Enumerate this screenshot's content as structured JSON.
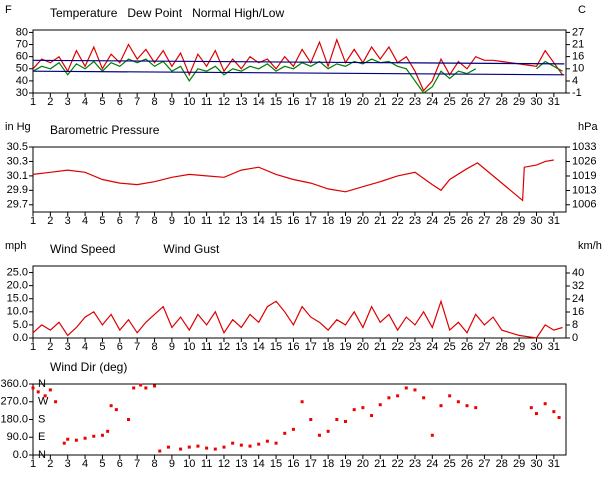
{
  "chart_data": [
    {
      "type": "line",
      "y_label": "F",
      "y2_label": "C",
      "xlim": [
        1,
        31.7
      ],
      "xticks": [
        1,
        2,
        3,
        4,
        5,
        6,
        7,
        8,
        9,
        10,
        11,
        12,
        13,
        14,
        15,
        16,
        17,
        18,
        19,
        20,
        21,
        22,
        23,
        24,
        25,
        26,
        27,
        28,
        29,
        30,
        31
      ],
      "ylim": [
        30,
        82
      ],
      "yticks": [
        80,
        70,
        60,
        50,
        40,
        30
      ],
      "y2lim": [
        -1.1,
        27.8
      ],
      "y2ticks": [
        {
          "value": 26.7,
          "label": "27"
        },
        {
          "value": 21.1,
          "label": "21"
        },
        {
          "value": 15.6,
          "label": "16"
        },
        10,
        {
          "value": 4.4,
          "label": "4"
        },
        {
          "value": -1.1,
          "label": "-1"
        }
      ],
      "x": [
        1,
        1.5,
        2,
        2.5,
        3,
        3.5,
        4,
        4.5,
        5,
        5.5,
        6,
        6.5,
        7,
        7.5,
        8,
        8.5,
        9,
        9.5,
        10,
        10.5,
        11,
        11.5,
        12,
        12.5,
        13,
        13.5,
        14,
        14.5,
        15,
        15.5,
        16,
        16.5,
        17,
        17.5,
        18,
        18.5,
        19,
        19.5,
        20,
        20.5,
        21,
        21.5,
        22,
        22.5,
        23,
        23.5,
        24,
        24.5,
        25,
        25.5,
        26,
        26.5,
        27,
        27.5,
        28,
        28.5,
        29,
        29.5,
        30,
        30.5,
        31,
        31.5
      ],
      "series": [
        {
          "name": "Temperature",
          "color": "#dd0000",
          "values": [
            50,
            58,
            55,
            60,
            48,
            65,
            52,
            68,
            50,
            62,
            55,
            70,
            58,
            66,
            55,
            65,
            52,
            63,
            45,
            62,
            52,
            65,
            48,
            58,
            50,
            60,
            55,
            58,
            50,
            60,
            52,
            66,
            55,
            72,
            52,
            74,
            55,
            66,
            55,
            68,
            58,
            68,
            55,
            60,
            48,
            32,
            40,
            58,
            45,
            56,
            50,
            60,
            57,
            57,
            56,
            55,
            54,
            53,
            52,
            65,
            55,
            45
          ]
        },
        {
          "name": "Dew Point",
          "color": "#008000",
          "values": [
            48,
            52,
            50,
            55,
            45,
            54,
            50,
            56,
            48,
            55,
            52,
            58,
            55,
            58,
            52,
            56,
            48,
            52,
            40,
            50,
            48,
            52,
            45,
            50,
            48,
            52,
            50,
            54,
            48,
            52,
            50,
            55,
            52,
            56,
            50,
            54,
            52,
            56,
            54,
            58,
            55,
            56,
            52,
            50,
            40,
            30,
            35,
            48,
            42,
            48,
            46,
            50,
            null,
            null,
            null,
            null,
            null,
            null,
            50,
            56,
            52,
            48
          ]
        },
        {
          "name": "Normal High/Low",
          "color": "#000080",
          "x": [
            1,
            31.6
          ],
          "values": [
            57,
            54
          ]
        },
        {
          "color": "#000080",
          "x": [
            1,
            31.6
          ],
          "values": [
            48,
            45
          ]
        }
      ]
    },
    {
      "type": "line",
      "y_label": "in Hg",
      "y2_label": "hPa",
      "xlim": [
        1,
        31.7
      ],
      "xticks": [
        1,
        2,
        3,
        4,
        5,
        6,
        7,
        8,
        9,
        10,
        11,
        12,
        13,
        14,
        15,
        16,
        17,
        18,
        19,
        20,
        21,
        22,
        23,
        24,
        25,
        26,
        27,
        28,
        29,
        30,
        31
      ],
      "ylim": [
        29.6,
        30.5
      ],
      "yticks": [
        30.5,
        30.3,
        30.1,
        29.9,
        29.7
      ],
      "y2lim": [
        1002.4,
        1032.9
      ],
      "y2ticks": [
        {
          "value": 1032.9,
          "label": "1033"
        },
        {
          "value": 1026.1,
          "label": "1026"
        },
        {
          "value": 1019.3,
          "label": "1019"
        },
        {
          "value": 1012.5,
          "label": "1013"
        },
        {
          "value": 1005.8,
          "label": "1006"
        }
      ],
      "x": [
        1,
        2,
        3,
        4,
        5,
        6,
        7,
        8,
        9,
        10,
        11,
        12,
        13,
        14,
        15,
        16,
        17,
        18,
        19,
        20,
        21,
        22,
        23,
        24,
        24.5,
        25,
        26,
        26.6,
        29.2,
        29.3,
        30,
        30.5,
        31
      ],
      "series": [
        {
          "name": "Barometric Pressure",
          "color": "#dd0000",
          "values": [
            30.12,
            30.15,
            30.18,
            30.15,
            30.05,
            30.0,
            29.98,
            30.02,
            30.08,
            30.12,
            30.1,
            30.08,
            30.18,
            30.22,
            30.12,
            30.05,
            30.0,
            29.92,
            29.88,
            29.95,
            30.02,
            30.1,
            30.15,
            29.98,
            29.9,
            30.05,
            30.2,
            30.28,
            29.76,
            30.22,
            30.25,
            30.3,
            30.32
          ]
        }
      ]
    },
    {
      "type": "line",
      "y_label": "mph",
      "y2_label": "km/h",
      "xlim": [
        1,
        31.7
      ],
      "xticks": [
        1,
        2,
        3,
        4,
        5,
        6,
        7,
        8,
        9,
        10,
        11,
        12,
        13,
        14,
        15,
        16,
        17,
        18,
        19,
        20,
        21,
        22,
        23,
        24,
        25,
        26,
        27,
        28,
        29,
        30,
        31
      ],
      "ylim": [
        0,
        27.5
      ],
      "yticks": [
        {
          "value": 25,
          "label": "25.0"
        },
        {
          "value": 20,
          "label": "20.0"
        },
        {
          "value": 15,
          "label": "15.0"
        },
        {
          "value": 10,
          "label": "10.0"
        },
        {
          "value": 5,
          "label": "5.0"
        },
        {
          "value": 0,
          "label": "0.0"
        }
      ],
      "y2lim": [
        0,
        44.3
      ],
      "y2ticks": [
        40,
        32,
        24,
        16,
        8,
        0
      ],
      "x": [
        1,
        1.5,
        2,
        2.5,
        3,
        3.5,
        4,
        4.5,
        5,
        5.5,
        6,
        6.5,
        7,
        7.5,
        8,
        8.5,
        9,
        9.5,
        10,
        10.5,
        11,
        11.5,
        12,
        12.5,
        13,
        13.5,
        14,
        14.5,
        15,
        15.5,
        16,
        16.5,
        17,
        17.5,
        18,
        18.5,
        19,
        19.5,
        20,
        20.5,
        21,
        21.5,
        22,
        22.5,
        23,
        23.5,
        24,
        24.5,
        25,
        25.5,
        26,
        26.5,
        27,
        27.5,
        28,
        28.5,
        29,
        29.5,
        30,
        30.5,
        31,
        31.5
      ],
      "series": [
        {
          "name": "Wind Speed",
          "color": "#dd0000",
          "values": [
            2,
            5,
            3,
            6,
            1,
            4,
            8,
            10,
            5,
            9,
            3,
            7,
            2,
            6,
            9,
            12,
            4,
            8,
            3,
            9,
            5,
            10,
            2,
            7,
            4,
            9,
            6,
            12,
            14,
            10,
            5,
            12,
            8,
            6,
            3,
            7,
            5,
            10,
            4,
            12,
            6,
            9,
            3,
            8,
            5,
            10,
            4,
            14,
            3,
            6,
            2,
            9,
            5,
            8,
            3,
            2,
            1,
            0.5,
            0,
            5,
            3,
            4
          ]
        },
        {
          "name": "Wind Gust",
          "color": "#000080",
          "x": [],
          "values": []
        }
      ]
    },
    {
      "type": "scatter",
      "xlim": [
        1,
        31.7
      ],
      "xticks": [
        1,
        2,
        3,
        4,
        5,
        6,
        7,
        8,
        9,
        10,
        11,
        12,
        13,
        14,
        15,
        16,
        17,
        18,
        19,
        20,
        21,
        22,
        23,
        24,
        25,
        26,
        27,
        28,
        29,
        30,
        31
      ],
      "ylim": [
        0,
        360
      ],
      "yticks": [
        {
          "value": 360,
          "label": "360.0"
        },
        {
          "value": 270,
          "label": "270.0"
        },
        {
          "value": 180,
          "label": "180.0"
        },
        {
          "value": 90,
          "label": "90.0"
        },
        {
          "value": 0,
          "label": "0.0"
        }
      ],
      "compass": [
        {
          "value": 360,
          "label": "N"
        },
        {
          "value": 270,
          "label": "W"
        },
        {
          "value": 180,
          "label": "S"
        },
        {
          "value": 90,
          "label": "E"
        },
        {
          "value": 0,
          "label": "N"
        }
      ],
      "x": [
        1,
        1.3,
        1.7,
        2,
        2.3,
        2.8,
        3,
        3.5,
        4,
        4.5,
        5,
        5.3,
        5.5,
        5.8,
        6.5,
        6.8,
        7.2,
        7.5,
        8,
        8.3,
        8.8,
        9.5,
        10,
        10.5,
        11,
        11.5,
        12,
        12.5,
        13,
        13.5,
        14,
        14.5,
        15,
        15.5,
        16,
        16.5,
        17,
        17.5,
        18,
        18.5,
        19,
        19.5,
        20,
        20.5,
        21,
        21.5,
        22,
        22.5,
        23,
        23.5,
        24,
        24.5,
        25,
        25.5,
        26,
        26.5,
        29.7,
        30,
        30.5,
        31,
        31.3
      ],
      "series": [
        {
          "name": "Wind Dir (deg)",
          "color": "#ee0000",
          "values": [
            340,
            320,
            300,
            330,
            270,
            60,
            80,
            75,
            85,
            95,
            100,
            120,
            250,
            230,
            180,
            340,
            355,
            340,
            350,
            20,
            40,
            30,
            40,
            45,
            35,
            30,
            40,
            60,
            50,
            45,
            55,
            70,
            60,
            110,
            130,
            270,
            180,
            100,
            120,
            180,
            170,
            230,
            240,
            200,
            255,
            290,
            300,
            340,
            330,
            290,
            100,
            250,
            300,
            270,
            250,
            240,
            240,
            210,
            260,
            220,
            190
          ]
        }
      ]
    }
  ]
}
